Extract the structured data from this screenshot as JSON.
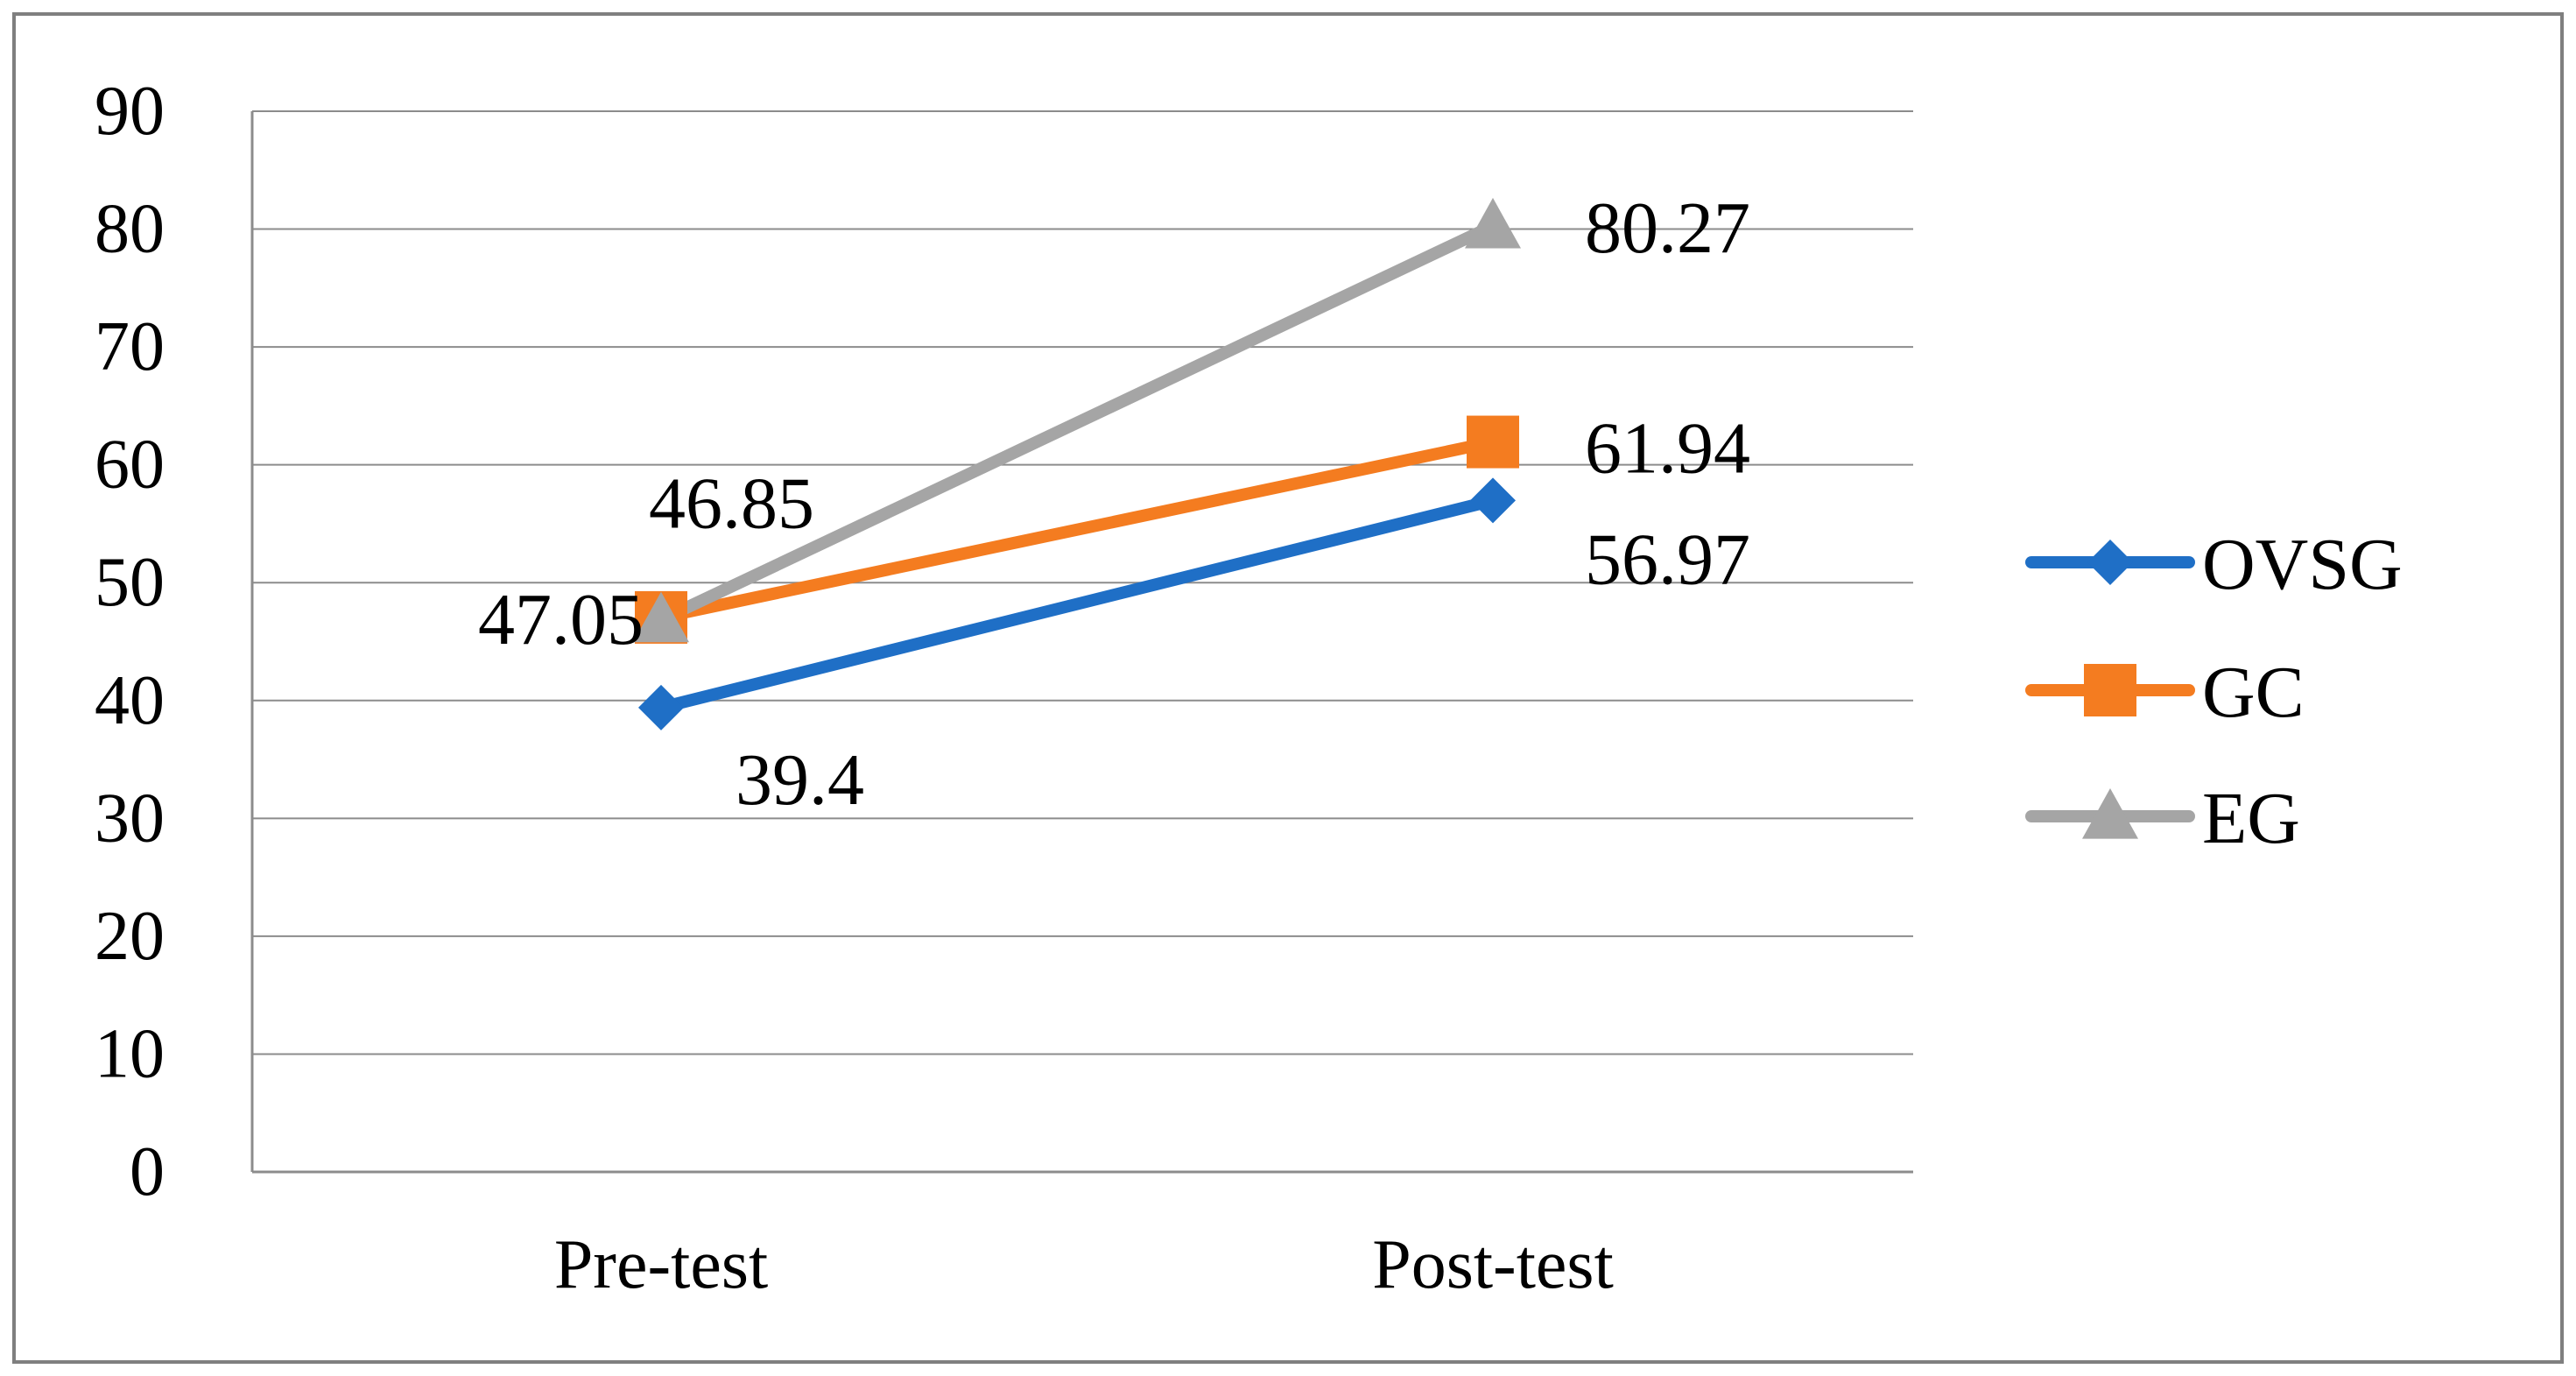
{
  "chart_data": {
    "type": "line",
    "categories": [
      "Pre-test",
      "Post-test"
    ],
    "ylim": [
      0,
      90
    ],
    "yticks": [
      0,
      10,
      20,
      30,
      40,
      50,
      60,
      70,
      80,
      90
    ],
    "grid": true,
    "legend_position": "right",
    "series": [
      {
        "name": "OVSG",
        "values": [
          39.4,
          56.97
        ],
        "labels": [
          "39.4",
          "56.97"
        ],
        "color": "#1f6fc6",
        "marker": "diamond"
      },
      {
        "name": "GC",
        "values": [
          47.05,
          61.94
        ],
        "labels": [
          "47.05",
          "61.94"
        ],
        "color": "#f47c20",
        "marker": "square"
      },
      {
        "name": "EG",
        "values": [
          46.85,
          80.27
        ],
        "labels": [
          "46.85",
          "80.27"
        ],
        "color": "#a5a5a5",
        "marker": "triangle"
      }
    ]
  }
}
